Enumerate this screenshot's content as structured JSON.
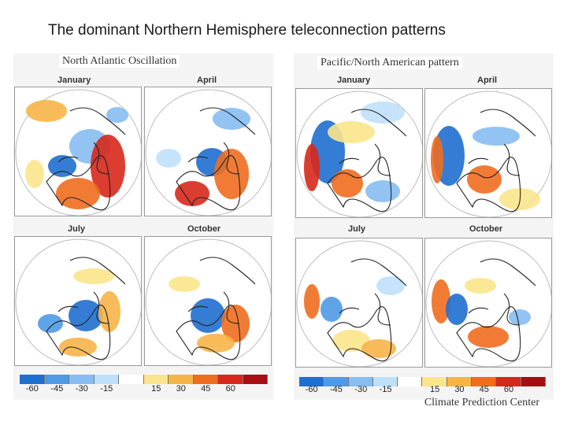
{
  "title": "The dominant Northern Hemisphere teleconnection patterns",
  "credit": "Climate Prediction Center",
  "groups": [
    {
      "label": "North Atlantic Oscillation",
      "maps": [
        {
          "month": "January"
        },
        {
          "month": "April"
        },
        {
          "month": "July"
        },
        {
          "month": "October"
        }
      ]
    },
    {
      "label": "Pacific/North American pattern",
      "maps": [
        {
          "month": "January"
        },
        {
          "month": "April"
        },
        {
          "month": "July"
        },
        {
          "month": "October"
        }
      ]
    }
  ],
  "colorbar": {
    "ticks": [
      "-60",
      "-45",
      "-30",
      "-15",
      "15",
      "30",
      "45",
      "60"
    ],
    "colors": [
      "#1f6fcf",
      "#4f9ae6",
      "#86bdf2",
      "#bfe0fb",
      "#ffffff",
      "#fbe58c",
      "#f6b447",
      "#ef6d1f",
      "#d8281b",
      "#a80d14"
    ]
  },
  "colors": {
    "ocean": "#ffffff",
    "land_line": "#222222"
  }
}
